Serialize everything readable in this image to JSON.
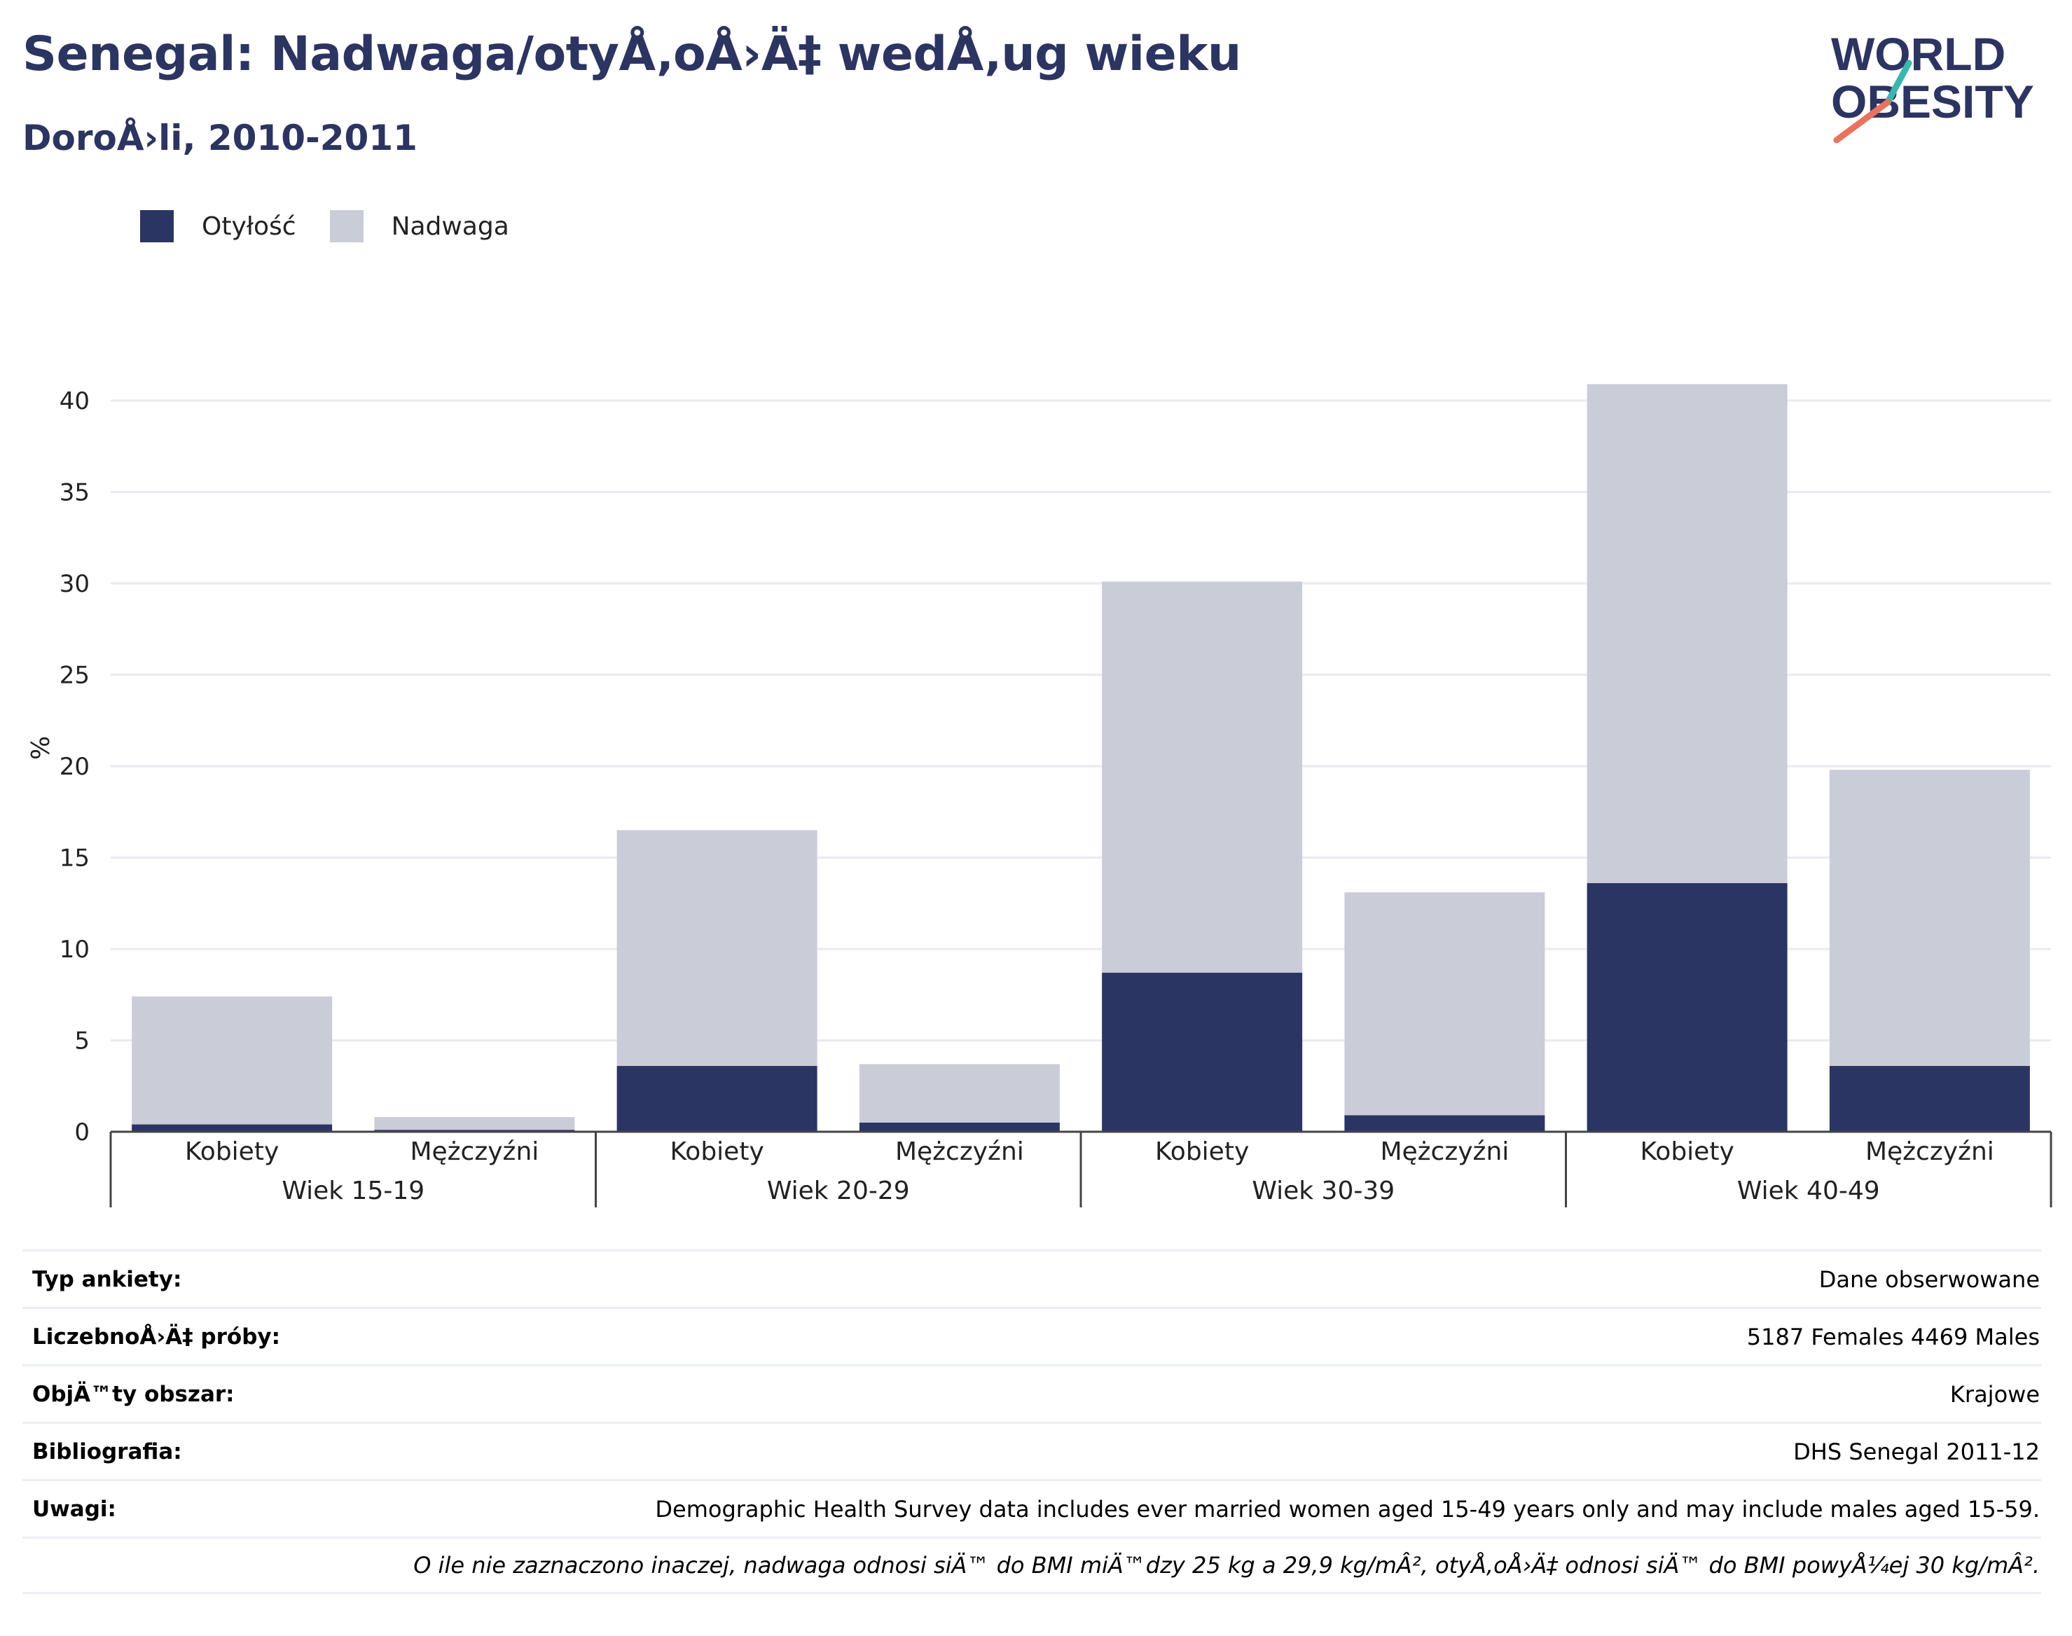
{
  "header": {
    "title": "Senegal: Nadwaga/otyÅ‚oÅ›Ä‡ wedÅ‚ug wieku",
    "subtitle": "DoroÅ›li, 2010-2011"
  },
  "logo": {
    "line1": "WORLD",
    "line2": "OBESITY",
    "accent_teal": "#3bb5b0",
    "accent_coral": "#e8735f"
  },
  "legend": {
    "items": [
      {
        "label": "Otyłość",
        "color": "#2a3563"
      },
      {
        "label": "Nadwaga",
        "color": "#caccd8"
      }
    ]
  },
  "chart_data": {
    "type": "bar",
    "stacked": true,
    "ylabel": "%",
    "ylim": [
      0,
      42
    ],
    "yticks": [
      0,
      5,
      10,
      15,
      20,
      25,
      30,
      35,
      40
    ],
    "grid": true,
    "groups": [
      "Wiek 15-19",
      "Wiek 20-29",
      "Wiek 30-39",
      "Wiek 40-49"
    ],
    "categories": [
      "Kobiety",
      "Mężczyźni",
      "Kobiety",
      "Mężczyźni",
      "Kobiety",
      "Mężczyźni",
      "Kobiety",
      "Mężczyźni"
    ],
    "series": [
      {
        "name": "Otyłość",
        "color": "#2a3563",
        "values": [
          0.4,
          0.1,
          3.6,
          0.5,
          8.7,
          0.9,
          13.6,
          3.6
        ]
      },
      {
        "name": "Nadwaga",
        "color": "#caccd8",
        "values": [
          7.0,
          0.7,
          12.9,
          3.2,
          21.4,
          12.2,
          27.3,
          16.2
        ]
      }
    ]
  },
  "meta": {
    "rows": [
      {
        "label": "Typ ankiety:",
        "value": "Dane obserwowane"
      },
      {
        "label": "LiczebnoÅ›Ä‡ próby:",
        "value": "5187 Females 4469 Males"
      },
      {
        "label": "ObjÄ™ty obszar:",
        "value": "Krajowe"
      },
      {
        "label": "Bibliografia:",
        "value": "DHS Senegal 2011-12"
      },
      {
        "label": "Uwagi:",
        "value": "Demographic Health Survey data includes ever married women aged 15-49 years only and may include males aged 15-59."
      }
    ],
    "footnote": "O ile nie zaznaczono inaczej, nadwaga odnosi siÄ™ do BMI miÄ™dzy 25 kg a 29,9 kg/mÂ², otyÅ‚oÅ›Ä‡ odnosi siÄ™ do BMI powyÅ¼ej 30 kg/mÂ²."
  }
}
